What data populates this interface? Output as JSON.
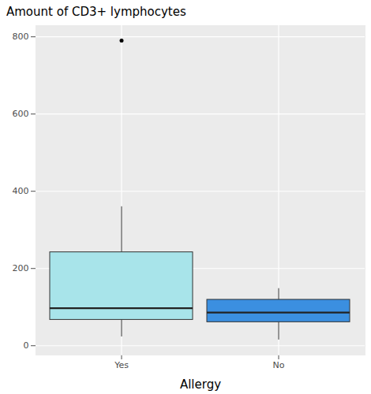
{
  "chart_data": {
    "type": "boxplot",
    "title": "Amount of CD3+ lymphocytes",
    "x_label": "Allergy",
    "categories": [
      "Yes",
      "No"
    ],
    "boxes": [
      {
        "min": 23,
        "q1": 67,
        "median": 97,
        "q3": 242,
        "max": 360,
        "outliers": [
          790
        ]
      },
      {
        "min": 15,
        "q1": 61,
        "median": 86,
        "q3": 119,
        "max": 148,
        "outliers": []
      }
    ],
    "colors": [
      "#a8e4ea",
      "#3b8fe0"
    ],
    "ylim": [
      -24,
      829
    ],
    "yticks": [
      0,
      200,
      400,
      600,
      800
    ],
    "grid": true
  }
}
